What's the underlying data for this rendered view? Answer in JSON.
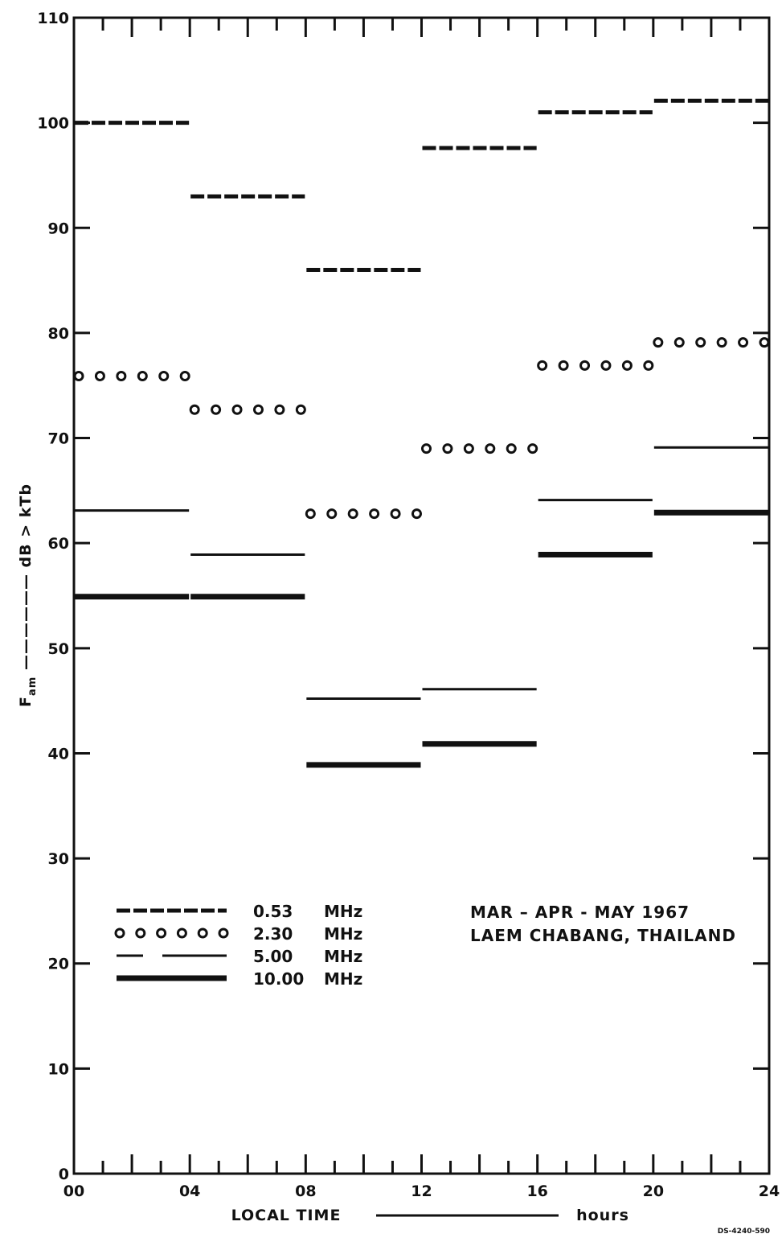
{
  "chart_data": {
    "type": "line",
    "xlabel": "LOCAL  TIME",
    "xunit": "hours",
    "ylabel": {
      "main": "F",
      "subscript": "am",
      "suffix": "dB > kTb"
    },
    "xlim": [
      0,
      24
    ],
    "ylim": [
      0,
      110
    ],
    "xticks": [
      {
        "value": 0,
        "label": "00"
      },
      {
        "value": 4,
        "label": "04"
      },
      {
        "value": 8,
        "label": "08"
      },
      {
        "value": 12,
        "label": "12"
      },
      {
        "value": 16,
        "label": "16"
      },
      {
        "value": 20,
        "label": "20"
      },
      {
        "value": 24,
        "label": "24"
      }
    ],
    "yticks": [
      {
        "value": 0,
        "label": "0"
      },
      {
        "value": 10,
        "label": "10"
      },
      {
        "value": 20,
        "label": "20"
      },
      {
        "value": 30,
        "label": "30"
      },
      {
        "value": 40,
        "label": "40"
      },
      {
        "value": 50,
        "label": "50"
      },
      {
        "value": 60,
        "label": "60"
      },
      {
        "value": 70,
        "label": "70"
      },
      {
        "value": 80,
        "label": "80"
      },
      {
        "value": 90,
        "label": "90"
      },
      {
        "value": 100,
        "label": "100"
      },
      {
        "value": 110,
        "label": "110"
      }
    ],
    "grid": false,
    "legend_position": "bottom-left",
    "series": [
      {
        "name": "0.53",
        "unit": "MHz",
        "style": "dash",
        "segments": [
          {
            "x0": 0,
            "x1": 4,
            "y": 100
          },
          {
            "x0": 4,
            "x1": 8,
            "y": 93
          },
          {
            "x0": 8,
            "x1": 12,
            "y": 86
          },
          {
            "x0": 12,
            "x1": 16,
            "y": 97.6
          },
          {
            "x0": 16,
            "x1": 20,
            "y": 101
          },
          {
            "x0": 20,
            "x1": 24,
            "y": 102.1
          }
        ]
      },
      {
        "name": "2.30",
        "unit": "MHz",
        "style": "circles",
        "segments": [
          {
            "x0": 0,
            "x1": 4,
            "y": 75.9
          },
          {
            "x0": 4,
            "x1": 8,
            "y": 72.7
          },
          {
            "x0": 8,
            "x1": 12,
            "y": 62.8
          },
          {
            "x0": 12,
            "x1": 16,
            "y": 69
          },
          {
            "x0": 16,
            "x1": 20,
            "y": 76.9
          },
          {
            "x0": 20,
            "x1": 24,
            "y": 79.1
          }
        ]
      },
      {
        "name": "5.00",
        "unit": "MHz",
        "style": "thin",
        "segments": [
          {
            "x0": 0,
            "x1": 4,
            "y": 63.1
          },
          {
            "x0": 4,
            "x1": 8,
            "y": 58.9
          },
          {
            "x0": 8,
            "x1": 12,
            "y": 45.2
          },
          {
            "x0": 12,
            "x1": 16,
            "y": 46.1
          },
          {
            "x0": 16,
            "x1": 20,
            "y": 64.1
          },
          {
            "x0": 20,
            "x1": 24,
            "y": 69.1
          }
        ]
      },
      {
        "name": "10.00",
        "unit": "MHz",
        "style": "thick",
        "segments": [
          {
            "x0": 0,
            "x1": 4,
            "y": 54.9
          },
          {
            "x0": 4,
            "x1": 8,
            "y": 54.9
          },
          {
            "x0": 8,
            "x1": 12,
            "y": 38.9
          },
          {
            "x0": 12,
            "x1": 16,
            "y": 40.9
          },
          {
            "x0": 16,
            "x1": 20,
            "y": 58.9
          },
          {
            "x0": 20,
            "x1": 24,
            "y": 62.9
          }
        ]
      }
    ],
    "annotations": [
      "MAR  –  APR - MAY   1967",
      "LAEM  CHABANG,  THAILAND"
    ],
    "figure_code": "DS-4240-590"
  }
}
